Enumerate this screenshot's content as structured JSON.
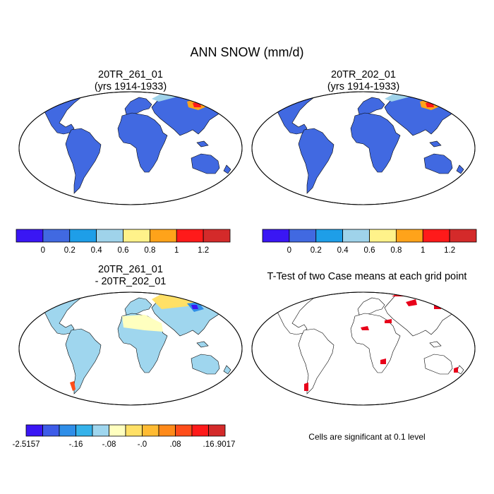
{
  "main_title": "ANN SNOW (mm/d)",
  "panels": [
    {
      "line1": "20TR_261_01",
      "line2": "(yrs 1914-1933)"
    },
    {
      "line1": "20TR_202_01",
      "line2": "(yrs 1914-1933)"
    },
    {
      "line1": "20TR_261_01",
      "line2": "- 20TR_202_01"
    },
    {
      "line1": "T-Test of two Case means at each grid point"
    }
  ],
  "colorbar_top": {
    "colors": [
      "#3a16f4",
      "#4169e1",
      "#1e9ee8",
      "#9fd3ea",
      "#fff28a",
      "#ffa31a",
      "#ff1a1a",
      "#d42a2a"
    ],
    "labels": [
      "0",
      "0.2",
      "0.4",
      "0.6",
      "0.8",
      "1",
      "1.2"
    ]
  },
  "colorbar_diff": {
    "colors": [
      "#3a16f4",
      "#3e5ce8",
      "#2f8ee8",
      "#35b2ea",
      "#9fd6ee",
      "#ffffbf",
      "#ffe066",
      "#ffbb33",
      "#ff8a1a",
      "#ff4d1a",
      "#ff1a1a",
      "#d42a2a"
    ],
    "labels": [
      "-2.5157",
      "-.16",
      "-.08",
      "-.0",
      ".08",
      ".16",
      ".9017"
    ]
  },
  "ttest_note": "Cells are significant at 0.1 level",
  "palette": {
    "ocean": "#ffffff",
    "outline": "#000000",
    "significant": "#e8001a"
  }
}
